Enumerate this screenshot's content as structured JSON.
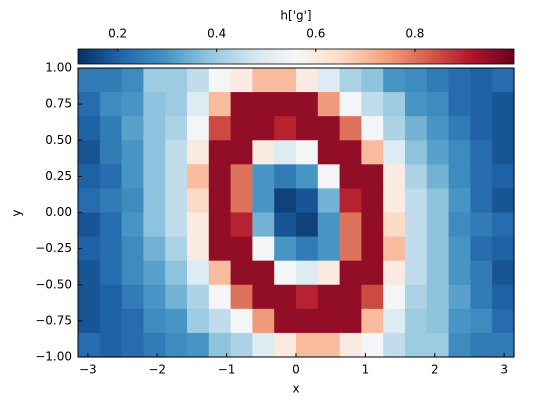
{
  "chart_data": {
    "type": "heatmap",
    "xlabel": "x",
    "ylabel": "y",
    "colorbar_label": "h['g']",
    "cmap": "RdBu_r",
    "xlim": [
      -3.14159,
      3.14159
    ],
    "ylim": [
      -1,
      1
    ],
    "xticks": [
      {
        "value": -3,
        "label": "−3"
      },
      {
        "value": -2,
        "label": "−2"
      },
      {
        "value": -1,
        "label": "−1"
      },
      0,
      1,
      2,
      3
    ],
    "yticks": [
      {
        "value": -1,
        "label": "−1.00"
      },
      {
        "value": -0.75,
        "label": "−0.75"
      },
      {
        "value": -0.5,
        "label": "−0.50"
      },
      {
        "value": -0.25,
        "label": "−0.25"
      },
      {
        "value": 0,
        "label": "0.00"
      },
      {
        "value": 0.25,
        "label": "0.25"
      },
      {
        "value": 0.5,
        "label": "0.50"
      },
      {
        "value": 0.75,
        "label": "0.75"
      },
      {
        "value": 1,
        "label": "1.00"
      }
    ],
    "clim": [
      0.12,
      1.0
    ],
    "cticks": [
      0.2,
      0.4,
      0.6,
      0.8
    ],
    "z": [
      [
        0.25,
        0.25,
        0.28,
        0.4,
        0.4,
        0.45,
        0.55,
        0.6,
        0.7,
        0.7,
        0.6,
        0.5,
        0.42,
        0.38,
        0.3,
        0.28,
        0.25,
        0.22,
        0.2,
        0.22
      ],
      [
        0.22,
        0.28,
        0.3,
        0.38,
        0.4,
        0.5,
        0.7,
        0.95,
        0.95,
        0.95,
        0.95,
        0.75,
        0.55,
        0.45,
        0.4,
        0.3,
        0.28,
        0.22,
        0.2,
        0.18
      ],
      [
        0.2,
        0.25,
        0.32,
        0.38,
        0.42,
        0.55,
        0.85,
        0.95,
        0.95,
        0.9,
        0.95,
        0.95,
        0.8,
        0.55,
        0.42,
        0.35,
        0.3,
        0.25,
        0.2,
        0.18
      ],
      [
        0.18,
        0.25,
        0.3,
        0.38,
        0.45,
        0.6,
        0.95,
        0.95,
        0.6,
        0.5,
        0.55,
        0.95,
        0.95,
        0.7,
        0.5,
        0.38,
        0.32,
        0.28,
        0.22,
        0.18
      ],
      [
        0.2,
        0.22,
        0.3,
        0.38,
        0.45,
        0.7,
        0.95,
        0.8,
        0.3,
        0.25,
        0.3,
        0.55,
        0.95,
        0.95,
        0.6,
        0.42,
        0.35,
        0.28,
        0.22,
        0.2
      ],
      [
        0.22,
        0.25,
        0.28,
        0.38,
        0.45,
        0.65,
        0.95,
        0.8,
        0.3,
        0.15,
        0.18,
        0.35,
        0.9,
        0.95,
        0.6,
        0.45,
        0.38,
        0.3,
        0.22,
        0.18
      ],
      [
        0.18,
        0.22,
        0.3,
        0.38,
        0.45,
        0.6,
        0.95,
        0.9,
        0.35,
        0.18,
        0.15,
        0.3,
        0.8,
        0.95,
        0.65,
        0.45,
        0.38,
        0.28,
        0.25,
        0.22
      ],
      [
        0.2,
        0.22,
        0.28,
        0.35,
        0.42,
        0.6,
        0.95,
        0.95,
        0.55,
        0.3,
        0.25,
        0.3,
        0.8,
        0.95,
        0.7,
        0.45,
        0.38,
        0.3,
        0.22,
        0.2
      ],
      [
        0.18,
        0.22,
        0.28,
        0.32,
        0.38,
        0.5,
        0.7,
        0.95,
        0.95,
        0.55,
        0.5,
        0.6,
        0.95,
        0.95,
        0.6,
        0.45,
        0.38,
        0.3,
        0.25,
        0.18
      ],
      [
        0.18,
        0.2,
        0.25,
        0.3,
        0.35,
        0.42,
        0.55,
        0.8,
        0.95,
        0.95,
        0.9,
        0.95,
        0.95,
        0.85,
        0.55,
        0.42,
        0.38,
        0.32,
        0.25,
        0.2
      ],
      [
        0.18,
        0.2,
        0.22,
        0.28,
        0.3,
        0.4,
        0.45,
        0.55,
        0.75,
        0.95,
        0.95,
        0.95,
        0.95,
        0.7,
        0.5,
        0.4,
        0.38,
        0.3,
        0.28,
        0.22
      ],
      [
        0.22,
        0.2,
        0.22,
        0.25,
        0.28,
        0.3,
        0.38,
        0.42,
        0.5,
        0.6,
        0.7,
        0.7,
        0.6,
        0.55,
        0.45,
        0.4,
        0.4,
        0.28,
        0.25,
        0.25
      ]
    ]
  }
}
